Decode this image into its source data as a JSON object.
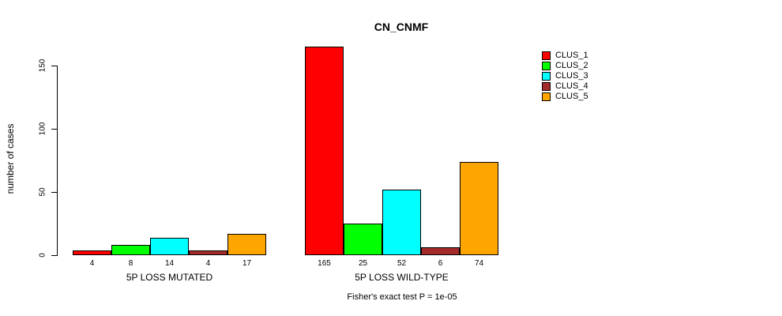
{
  "title": "CN_CNMF",
  "y_axis": {
    "label": "number of cases"
  },
  "footer": "Fisher's exact test P = 1e-05",
  "legend": {
    "items": [
      {
        "label": "CLUS_1",
        "color": "#ff0000"
      },
      {
        "label": "CLUS_2",
        "color": "#00ff00"
      },
      {
        "label": "CLUS_3",
        "color": "#00ffff"
      },
      {
        "label": "CLUS_4",
        "color": "#a52a2a"
      },
      {
        "label": "CLUS_5",
        "color": "#ffa500"
      }
    ]
  },
  "chart_data": {
    "type": "bar",
    "title": "CN_CNMF",
    "xlabel": "",
    "ylabel": "number of cases",
    "ylim": [
      0,
      170
    ],
    "yticks": [
      0,
      50,
      100,
      150
    ],
    "grid": false,
    "legend_position": "top-right",
    "bar_value_labels": true,
    "categories": [
      "5P LOSS MUTATED",
      "5P LOSS WILD-TYPE"
    ],
    "series": [
      {
        "name": "CLUS_1",
        "color": "#ff0000",
        "values": [
          4,
          165
        ]
      },
      {
        "name": "CLUS_2",
        "color": "#00ff00",
        "values": [
          8,
          25
        ]
      },
      {
        "name": "CLUS_3",
        "color": "#00ffff",
        "values": [
          14,
          52
        ]
      },
      {
        "name": "CLUS_4",
        "color": "#a52a2a",
        "values": [
          4,
          6
        ]
      },
      {
        "name": "CLUS_5",
        "color": "#ffa500",
        "values": [
          17,
          74
        ]
      }
    ],
    "annotation": "Fisher's exact test P = 1e-05"
  }
}
